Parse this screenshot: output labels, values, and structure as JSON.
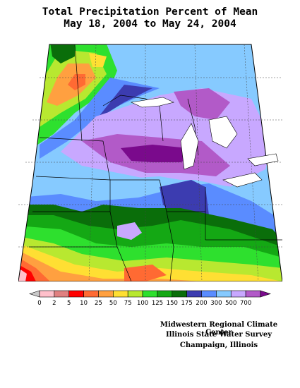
{
  "title": {
    "line1": "Total Precipitation Percent of Mean",
    "line2": "May 18, 2004 to May 24, 2004"
  },
  "legend": {
    "breaks": [
      "0",
      "2",
      "5",
      "10",
      "25",
      "50",
      "75",
      "100",
      "125",
      "150",
      "175",
      "200",
      "300",
      "500",
      "700"
    ],
    "colors": [
      "#c8c8c8",
      "#ffc0cb",
      "#e08080",
      "#ff0000",
      "#ff6a33",
      "#ffa040",
      "#ffdf33",
      "#b8e830",
      "#2ee02e",
      "#14a814",
      "#0a6e0a",
      "#3c3cb0",
      "#5a8cff",
      "#86caff",
      "#c8a8ff",
      "#b25ac8",
      "#7a0a8c"
    ]
  },
  "credits": {
    "line1": "Midwestern Regional Climate Center",
    "line2": "Illinois State Water Survey",
    "line3": "Champaign, Illinois"
  }
}
